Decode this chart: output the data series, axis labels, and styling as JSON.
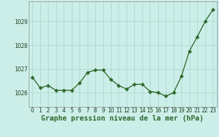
{
  "x": [
    0,
    1,
    2,
    3,
    4,
    5,
    6,
    7,
    8,
    9,
    10,
    11,
    12,
    13,
    14,
    15,
    16,
    17,
    18,
    19,
    20,
    21,
    22,
    23
  ],
  "y": [
    1026.65,
    1026.2,
    1026.3,
    1026.1,
    1026.1,
    1026.1,
    1026.4,
    1026.85,
    1026.95,
    1026.95,
    1026.55,
    1026.3,
    1026.15,
    1026.35,
    1026.35,
    1026.05,
    1026.0,
    1025.85,
    1026.0,
    1026.7,
    1027.75,
    1028.35,
    1029.0,
    1029.5
  ],
  "line_color": "#2d6a2d",
  "marker_color": "#2d6a2d",
  "bg_color": "#cceee8",
  "grid_color": "#aad8d0",
  "xlabel": "Graphe pression niveau de la mer (hPa)",
  "xlabel_fontsize": 7.5,
  "ytick_labels": [
    "1026",
    "1027",
    "1028",
    "1029"
  ],
  "ytick_values": [
    1026,
    1027,
    1028,
    1029
  ],
  "ylim": [
    1025.4,
    1029.85
  ],
  "xlim": [
    -0.5,
    23.5
  ],
  "xtick_values": [
    0,
    1,
    2,
    3,
    4,
    5,
    6,
    7,
    8,
    9,
    10,
    11,
    12,
    13,
    14,
    15,
    16,
    17,
    18,
    19,
    20,
    21,
    22,
    23
  ],
  "tick_fontsize": 5.5,
  "line_width": 1.0,
  "marker_size": 2.8
}
